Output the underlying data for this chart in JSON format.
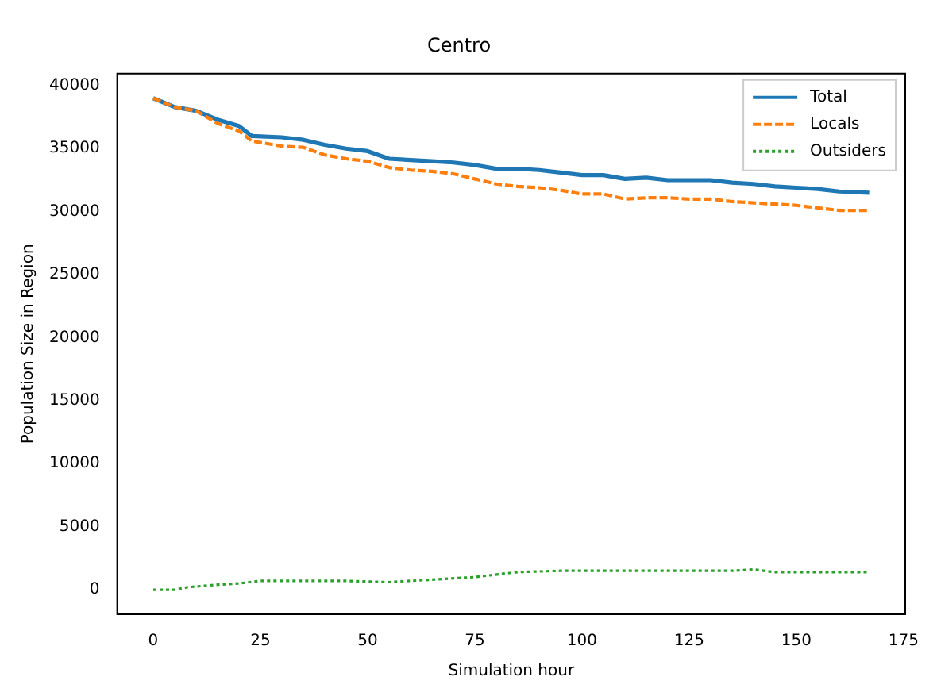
{
  "chart_data": {
    "type": "line",
    "title": "Centro",
    "xlabel": "Simulation hour",
    "ylabel": "Population Size in Region",
    "xlim": [
      -8.4,
      175.4
    ],
    "xticks": [
      0,
      25,
      50,
      75,
      100,
      125,
      150,
      175
    ],
    "ylim": [
      -1950,
      40950
    ],
    "yticks": [
      0,
      5000,
      10000,
      15000,
      20000,
      25000,
      30000,
      35000,
      40000
    ],
    "legend": "top right",
    "grid": false,
    "marker": "none",
    "series": [
      {
        "name": "Total",
        "color": "#1f77b4",
        "line_style": "solid",
        "x": [
          0,
          5,
          10,
          15,
          20,
          23,
          30,
          35,
          40,
          45,
          50,
          55,
          60,
          65,
          70,
          75,
          80,
          85,
          90,
          95,
          100,
          105,
          110,
          115,
          120,
          125,
          130,
          135,
          140,
          145,
          150,
          155,
          160,
          167
        ],
        "values": [
          39000,
          38300,
          38000,
          37300,
          36800,
          36000,
          35900,
          35700,
          35300,
          35000,
          34800,
          34200,
          34100,
          34000,
          33900,
          33700,
          33400,
          33400,
          33300,
          33100,
          32900,
          32900,
          32600,
          32700,
          32500,
          32500,
          32500,
          32300,
          32200,
          32000,
          31900,
          31800,
          31600,
          31500
        ]
      },
      {
        "name": "Locals",
        "color": "#ff7f0e",
        "line_style": "dashed",
        "x": [
          0,
          5,
          10,
          15,
          20,
          23,
          30,
          35,
          40,
          45,
          50,
          55,
          60,
          65,
          70,
          75,
          80,
          85,
          90,
          95,
          100,
          105,
          110,
          115,
          120,
          125,
          130,
          135,
          140,
          145,
          150,
          155,
          160,
          167
        ],
        "values": [
          39000,
          38300,
          38000,
          37000,
          36400,
          35600,
          35200,
          35100,
          34500,
          34200,
          34000,
          33500,
          33300,
          33200,
          33000,
          32600,
          32200,
          32000,
          31900,
          31700,
          31400,
          31400,
          31000,
          31100,
          31100,
          31000,
          31000,
          30800,
          30700,
          30600,
          30500,
          30300,
          30100,
          30100
        ]
      },
      {
        "name": "Outsiders",
        "color": "#2ca02c",
        "line_style": "dotted",
        "x": [
          0,
          5,
          8,
          15,
          20,
          25,
          35,
          45,
          55,
          65,
          75,
          85,
          95,
          105,
          115,
          125,
          135,
          140,
          145,
          155,
          167
        ],
        "values": [
          0,
          0,
          200,
          400,
          500,
          700,
          700,
          700,
          600,
          800,
          1000,
          1400,
          1500,
          1500,
          1500,
          1500,
          1500,
          1600,
          1400,
          1400,
          1400
        ]
      }
    ]
  }
}
